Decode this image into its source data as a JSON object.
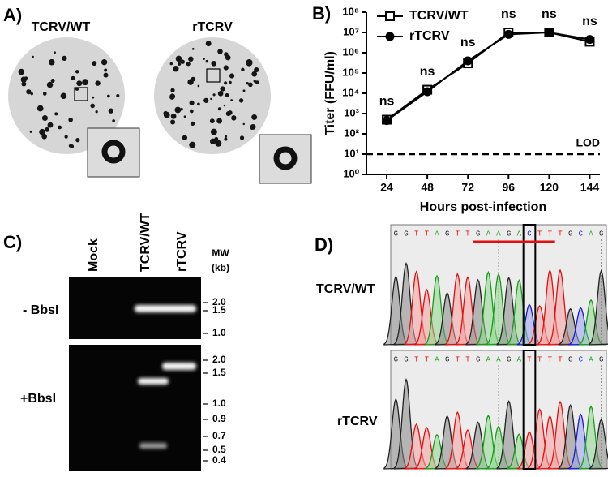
{
  "panel_a": {
    "label": "A)",
    "titles": [
      "TCRV/WT",
      "rTCRV"
    ]
  },
  "chart_data": {
    "type": "line",
    "panel_label": "B)",
    "y_label": "Titer (FFU/ml)",
    "x_label": "Hours post-infection",
    "log_y": true,
    "legend": "upper left",
    "x": [
      24,
      48,
      72,
      96,
      120,
      144
    ],
    "xlim": [
      12,
      150
    ],
    "xticks": [
      24,
      48,
      72,
      96,
      120,
      144
    ],
    "ylim": [
      1,
      100000000
    ],
    "yticks": [
      {
        "value": 1,
        "label": "10⁰"
      },
      {
        "value": 10,
        "label": "10¹"
      },
      {
        "value": 100,
        "label": "10²"
      },
      {
        "value": 1000,
        "label": "10³"
      },
      {
        "value": 10000,
        "label": "10⁴"
      },
      {
        "value": 100000,
        "label": "10⁵"
      },
      {
        "value": 1000000,
        "label": "10⁶"
      },
      {
        "value": 10000000,
        "label": "10⁷"
      },
      {
        "value": 100000000,
        "label": "10⁸"
      }
    ],
    "series": [
      {
        "name": "TCRV/WT",
        "color": "#000000",
        "marker": "open-square",
        "values": [
          500,
          15000,
          300000,
          10000000,
          10000000,
          3500000
        ]
      },
      {
        "name": "rTCRV",
        "color": "#000000",
        "marker": "filled-circle",
        "values": [
          450,
          12000,
          400000,
          8000000,
          10000000,
          4500000
        ]
      }
    ],
    "annotations": [
      "ns",
      "ns",
      "ns",
      "ns",
      "ns",
      "ns"
    ],
    "lod": {
      "label": "LOD",
      "value": 10
    }
  },
  "panel_c": {
    "label": "C)",
    "lanes": [
      "Mock",
      "TCRV/WT",
      "rTCRV"
    ],
    "mw_title": [
      "MW",
      "(kb)"
    ],
    "rows": [
      {
        "label": "- BbsI",
        "markers": [
          "2.0",
          "1.5",
          "1.0"
        ]
      },
      {
        "label": "+BbsI",
        "markers": [
          "2.0",
          "1.5",
          "1.0",
          "0.9",
          "0.7",
          "0.5",
          "0.4"
        ]
      }
    ]
  },
  "panel_d": {
    "label": "D)",
    "rows": [
      {
        "label": "TCRV/WT",
        "sequence": [
          "G",
          "G",
          "T",
          "T",
          "A",
          "G",
          "T",
          "T",
          "G",
          "A",
          "A",
          "G",
          "A",
          "C",
          "T",
          "T",
          "T",
          "G",
          "C",
          "A",
          "G"
        ]
      },
      {
        "label": "rTCRV",
        "sequence": [
          "G",
          "G",
          "T",
          "T",
          "A",
          "G",
          "T",
          "T",
          "G",
          "A",
          "A",
          "G",
          "A",
          "T",
          "T",
          "T",
          "T",
          "G",
          "C",
          "A",
          "G"
        ]
      }
    ]
  }
}
